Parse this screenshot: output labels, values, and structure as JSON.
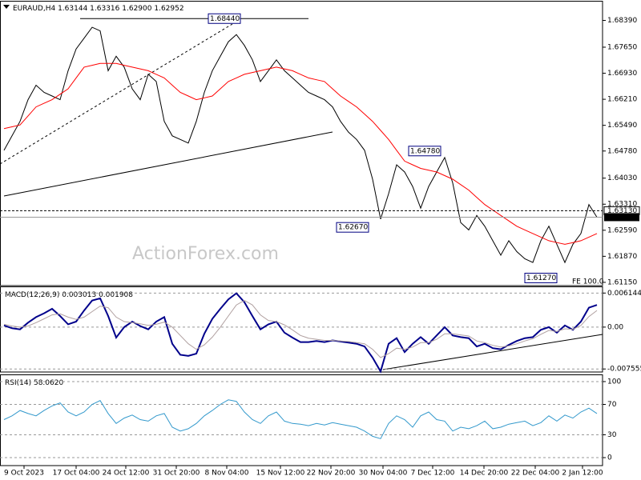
{
  "chart_data": [
    {
      "type": "line",
      "title": "EURAUD,H4",
      "quote": {
        "open": 1.63144,
        "high": 1.63316,
        "low": {
          "value": 1.629,
          "label": "1.62900"
        },
        "close": 1.62952
      },
      "watermark": "ActionForex.com",
      "annotation": "FE 100.0",
      "xlim": [
        -0.5,
        74.7
      ],
      "ylim": [
        1.6106,
        1.6891
      ],
      "yticks": [
        {
          "value": 1.6839,
          "label": "1.68390"
        },
        {
          "value": 1.6765,
          "label": "1.67650"
        },
        {
          "value": 1.6693,
          "label": "1.66930"
        },
        {
          "value": 1.6621,
          "label": "1.66210"
        },
        {
          "value": 1.6549,
          "label": "1.65490"
        },
        {
          "value": 1.6478,
          "label": "1.64780"
        },
        {
          "value": 1.6403,
          "label": "1.64030"
        },
        {
          "value": 1.6331,
          "label": "1.63310"
        },
        {
          "value": 1.6259,
          "label": "1.62590"
        },
        {
          "value": 1.6187,
          "label": "1.61870"
        },
        {
          "value": 1.6115,
          "label": "1.61150"
        }
      ],
      "grid": false,
      "levels": [
        {
          "value": 1.6844,
          "label": "1.68440"
        },
        {
          "value": 1.6478,
          "label": "1.64780"
        },
        {
          "value": 1.6267,
          "label": "1.62670"
        },
        {
          "value": 1.6127,
          "label": "1.61270"
        }
      ],
      "marker_line": {
        "value": 1.6313,
        "label": "1.63130"
      },
      "series": [
        {
          "color": "#000000",
          "values": [
            1.648,
            1.652,
            1.656,
            1.662,
            1.666,
            1.664,
            1.663,
            1.662,
            1.67,
            1.676,
            1.679,
            1.682,
            1.681,
            1.67,
            1.674,
            1.671,
            1.665,
            1.662,
            1.669,
            1.667,
            1.656,
            1.652,
            1.651,
            1.65,
            1.656,
            1.664,
            1.67,
            1.674,
            1.678,
            1.68,
            1.677,
            1.673,
            1.667,
            1.67,
            1.673,
            1.67,
            1.668,
            1.666,
            1.664,
            1.663,
            1.662,
            1.66,
            1.656,
            1.653,
            1.651,
            1.648,
            1.64,
            1.629,
            1.636,
            1.644,
            1.642,
            1.638,
            1.632,
            1.638,
            1.642,
            1.646,
            1.639,
            1.628,
            1.626,
            1.63,
            1.627,
            1.623,
            1.619,
            1.623,
            1.62,
            1.618,
            1.617,
            1.623,
            1.627,
            1.622,
            1.617,
            1.622,
            1.625,
            1.633,
            1.6295
          ]
        },
        {
          "color": "#ff0000",
          "values": [
            1.654,
            1.6545,
            1.655,
            1.6575,
            1.66,
            1.661,
            1.662,
            1.6635,
            1.665,
            1.668,
            1.671,
            1.6715,
            1.672,
            1.672,
            1.672,
            1.6715,
            1.671,
            1.6705,
            1.67,
            1.669,
            1.668,
            1.666,
            1.664,
            1.663,
            1.662,
            1.6625,
            1.663,
            1.665,
            1.667,
            1.668,
            1.669,
            1.6695,
            1.67,
            1.6705,
            1.671,
            1.6705,
            1.67,
            1.669,
            1.668,
            1.6675,
            1.667,
            1.665,
            1.663,
            1.6615,
            1.66,
            1.658,
            1.656,
            1.6535,
            1.651,
            1.648,
            1.645,
            1.644,
            1.643,
            1.6425,
            1.642,
            1.641,
            1.64,
            1.6385,
            1.637,
            1.635,
            1.633,
            1.6315,
            1.63,
            1.6285,
            1.627,
            1.626,
            1.625,
            1.624,
            1.623,
            1.6225,
            1.622,
            1.6225,
            1.623,
            1.624,
            1.625
          ]
        }
      ]
    },
    {
      "type": "line",
      "title": "MACD(12,26,9)",
      "macd_value": 0.003013,
      "signal_value": 0.001908,
      "xlim": [
        -0.5,
        74.7
      ],
      "ylim": [
        -0.0081,
        0.0072
      ],
      "yticks": [
        0.006144,
        {
          "value": 0,
          "label": "0.00"
        },
        -0.007555
      ],
      "grid": true,
      "series": [
        {
          "color": "#00008b",
          "values": [
            0.0003,
            -0.0002,
            -0.0004,
            0.0008,
            0.0018,
            0.0025,
            0.0033,
            0.002,
            0.0005,
            0.001,
            0.003,
            0.0048,
            0.0052,
            0.002,
            -0.0019,
            0.0,
            0.001,
            0.0002,
            -0.0004,
            0.001,
            0.0018,
            -0.003,
            -0.005,
            -0.0052,
            -0.0048,
            -0.0012,
            0.0015,
            0.0033,
            0.005,
            0.0061,
            0.0045,
            0.002,
            -0.0004,
            0.0005,
            0.001,
            -0.001,
            -0.0019,
            -0.0027,
            -0.0027,
            -0.0025,
            -0.0027,
            -0.0024,
            -0.0026,
            -0.0028,
            -0.003,
            -0.0035,
            -0.0055,
            -0.008,
            -0.003,
            -0.002,
            -0.0045,
            -0.003,
            -0.0018,
            -0.003,
            -0.0015,
            0.0,
            -0.0015,
            -0.0018,
            -0.002,
            -0.0035,
            -0.003,
            -0.0038,
            -0.004,
            -0.0032,
            -0.0025,
            -0.002,
            -0.0018,
            -0.0005,
            0.0,
            -0.001,
            0.0003,
            -0.0005,
            0.001,
            0.0035,
            0.004
          ]
        },
        {
          "color": "#b0a0a0",
          "values": [
            0.0005,
            0.0002,
            0.0,
            0.0002,
            0.0008,
            0.0015,
            0.0022,
            0.0024,
            0.0018,
            0.0014,
            0.0018,
            0.0028,
            0.0038,
            0.0035,
            0.0018,
            0.001,
            0.0008,
            0.0006,
            0.0003,
            0.0005,
            0.0009,
            0.0,
            -0.0015,
            -0.003,
            -0.004,
            -0.0032,
            -0.0018,
            0.0,
            0.002,
            0.004,
            0.0048,
            0.004,
            0.0022,
            0.0012,
            0.001,
            0.0004,
            -0.0005,
            -0.0015,
            -0.002,
            -0.0022,
            -0.0024,
            -0.0024,
            -0.0025,
            -0.0026,
            -0.0028,
            -0.003,
            -0.004,
            -0.0055,
            -0.0048,
            -0.0038,
            -0.004,
            -0.0036,
            -0.0028,
            -0.0028,
            -0.0022,
            -0.0012,
            -0.0012,
            -0.0014,
            -0.0016,
            -0.0025,
            -0.0028,
            -0.0033,
            -0.0036,
            -0.0034,
            -0.003,
            -0.0025,
            -0.0021,
            -0.0013,
            -0.0006,
            -0.0008,
            -0.0003,
            -0.0004,
            0.0003,
            0.0019,
            0.003
          ]
        }
      ]
    },
    {
      "type": "line",
      "title": "RSI(14)",
      "rsi_value": {
        "value": 58.062,
        "label": "58.0620"
      },
      "xlim": [
        -0.5,
        74.7
      ],
      "ylim": [
        -10.5,
        108.4
      ],
      "yticks": [
        100,
        70,
        30,
        0
      ],
      "grid": true,
      "xticks": [
        {
          "value": 2.5,
          "label": "9 Oct 2023"
        },
        {
          "value": 9,
          "label": "17 Oct 04:00"
        },
        {
          "value": 15.2,
          "label": "24 Oct 12:00"
        },
        {
          "value": 21.5,
          "label": "31 Oct 20:00"
        },
        {
          "value": 27.8,
          "label": "8 Nov 04:00"
        },
        {
          "value": 34.5,
          "label": "15 Nov 12:00"
        },
        {
          "value": 40.8,
          "label": "22 Nov 20:00"
        },
        {
          "value": 47.3,
          "label": "30 Nov 04:00"
        },
        {
          "value": 53.5,
          "label": "7 Dec 12:00"
        },
        {
          "value": 59.9,
          "label": "14 Dec 20:00"
        },
        {
          "value": 66.3,
          "label": "22 Dec 04:00"
        },
        {
          "value": 72.2,
          "label": "2 Jan 12:00"
        }
      ],
      "series": [
        {
          "color": "#3399cc",
          "values": [
            50,
            55,
            62,
            58,
            55,
            62,
            68,
            72,
            60,
            55,
            60,
            70,
            75,
            58,
            45,
            52,
            56,
            50,
            48,
            55,
            58,
            40,
            35,
            38,
            45,
            55,
            62,
            70,
            76,
            74,
            60,
            50,
            45,
            55,
            60,
            48,
            45,
            44,
            42,
            45,
            43,
            46,
            44,
            42,
            40,
            35,
            28,
            25,
            45,
            55,
            50,
            40,
            55,
            60,
            50,
            48,
            35,
            40,
            38,
            42,
            48,
            38,
            40,
            44,
            46,
            48,
            42,
            46,
            55,
            48,
            56,
            52,
            60,
            65,
            58
          ]
        }
      ]
    }
  ]
}
